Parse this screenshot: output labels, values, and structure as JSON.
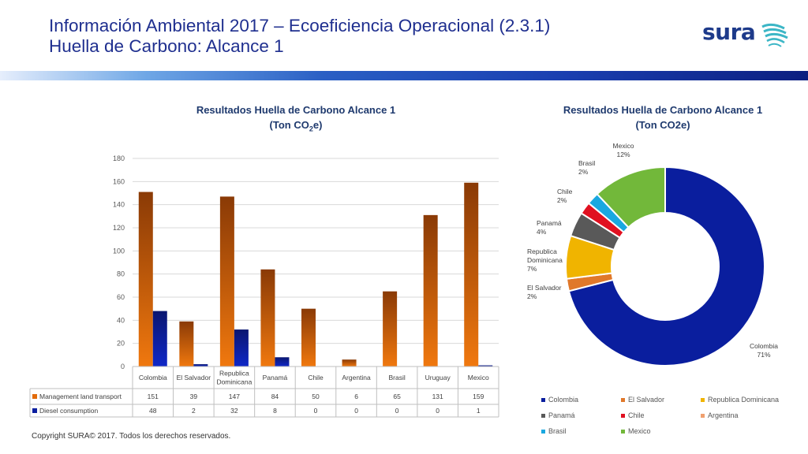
{
  "header": {
    "title_line1": "Información Ambiental 2017 – Ecoeficiencia Operacional (2.3.1)",
    "title_line2": "Huella de Carbono: Alcance 1",
    "logo_text": "sura"
  },
  "footer": {
    "copyright": "Copyright SURA© 2017. Todos los derechos reservados."
  },
  "colors": {
    "title": "#1f2f8f",
    "management": "#e26b0a",
    "diesel": "#0c1fa0",
    "pie": [
      "#0a1e9e",
      "#e0782a",
      "#f0b400",
      "#595959",
      "#e01020",
      "#f0a070",
      "#1aa8e0",
      "#72b83a"
    ]
  },
  "chart_data": [
    {
      "type": "bar",
      "title_line1": "Resultados Huella de Carbono Alcance 1",
      "title_line2_prefix": "(Ton CO",
      "title_line2_sub": "2",
      "title_line2_suffix": "e)",
      "categories": [
        "Colombia",
        "El Salvador",
        "Republica Dominicana",
        "Panamá",
        "Chile",
        "Argentina",
        "Brasil",
        "Uruguay",
        "Mexico"
      ],
      "category_labels": [
        [
          "Colombia"
        ],
        [
          "El Salvador"
        ],
        [
          "Republica",
          "Dominicana"
        ],
        [
          "Panamá"
        ],
        [
          "Chile"
        ],
        [
          "Argentina"
        ],
        [
          "Brasil"
        ],
        [
          "Uruguay"
        ],
        [
          "Mexico"
        ]
      ],
      "series": [
        {
          "name": "Management land transport",
          "values": [
            151,
            39,
            147,
            84,
            50,
            6,
            65,
            131,
            159
          ]
        },
        {
          "name": "Diesel consumption",
          "values": [
            48,
            2,
            32,
            8,
            0,
            0,
            0,
            0,
            1
          ]
        }
      ],
      "ylim": [
        0,
        180
      ],
      "yticks": [
        0,
        20,
        40,
        60,
        80,
        100,
        120,
        140,
        160,
        180
      ],
      "grid": true,
      "data_table": true
    },
    {
      "type": "pie",
      "title_line1": "Resultados Huella de Carbono Alcance 1",
      "title_line2": "(Ton CO2e)",
      "donut": true,
      "labels": [
        "Colombia",
        "El Salvador",
        "Republica Dominicana",
        "Panamá",
        "Chile",
        "Argentina",
        "Brasil",
        "Mexico"
      ],
      "values": [
        71,
        2,
        7,
        4,
        2,
        0,
        2,
        12
      ],
      "percent_labels": [
        "71%",
        "2%",
        "7%",
        "4%",
        "2%",
        "",
        "2%",
        "12%"
      ],
      "label_lines": [
        [
          "Colombia"
        ],
        [
          "El Salvador"
        ],
        [
          "Republica",
          "Dominicana"
        ],
        [
          "Panamá"
        ],
        [
          "Chile"
        ],
        [],
        [
          "Brasil"
        ],
        [
          "Mexico"
        ]
      ],
      "legend_position": "bottom"
    }
  ]
}
